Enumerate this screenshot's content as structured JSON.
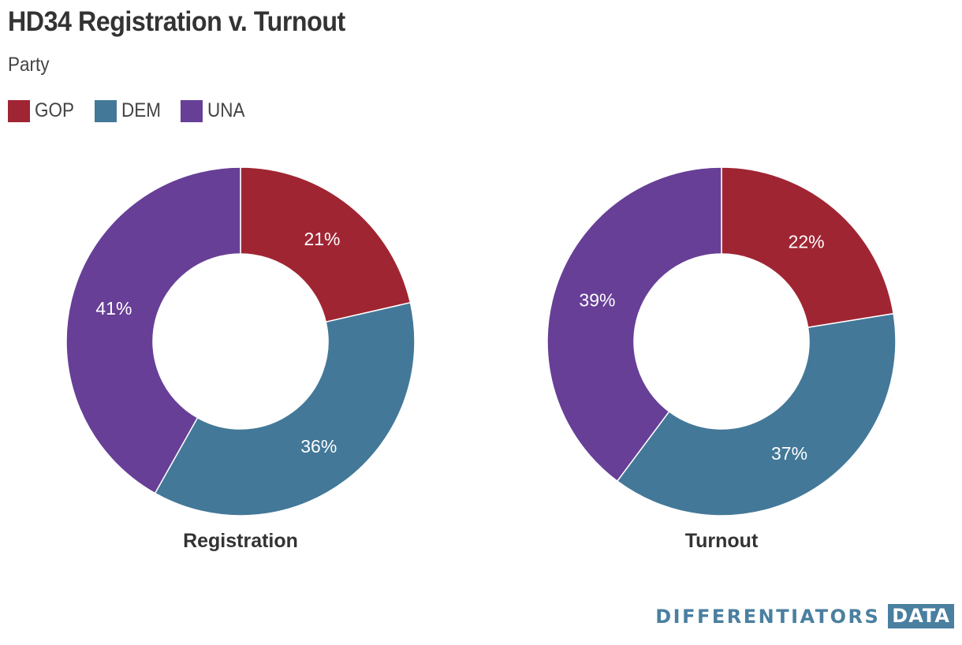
{
  "title": "HD34 Registration v. Turnout",
  "subtitle": "Party",
  "legend": [
    {
      "label": "GOP",
      "color": "#a02533"
    },
    {
      "label": "DEM",
      "color": "#437898"
    },
    {
      "label": "UNA",
      "color": "#673f97"
    }
  ],
  "chart_data": [
    {
      "type": "pie",
      "title": "Registration",
      "categories": [
        "GOP",
        "DEM",
        "UNA"
      ],
      "values": [
        21,
        36,
        41
      ],
      "labels": [
        "21%",
        "36%",
        "41%"
      ],
      "colors": [
        "#a02533",
        "#437898",
        "#673f97"
      ]
    },
    {
      "type": "pie",
      "title": "Turnout",
      "categories": [
        "GOP",
        "DEM",
        "UNA"
      ],
      "values": [
        22,
        37,
        39
      ],
      "labels": [
        "22%",
        "37%",
        "39%"
      ],
      "colors": [
        "#a02533",
        "#437898",
        "#673f97"
      ]
    }
  ],
  "branding": {
    "name": "DIFFERENTIATORS",
    "badge": "DATA"
  }
}
